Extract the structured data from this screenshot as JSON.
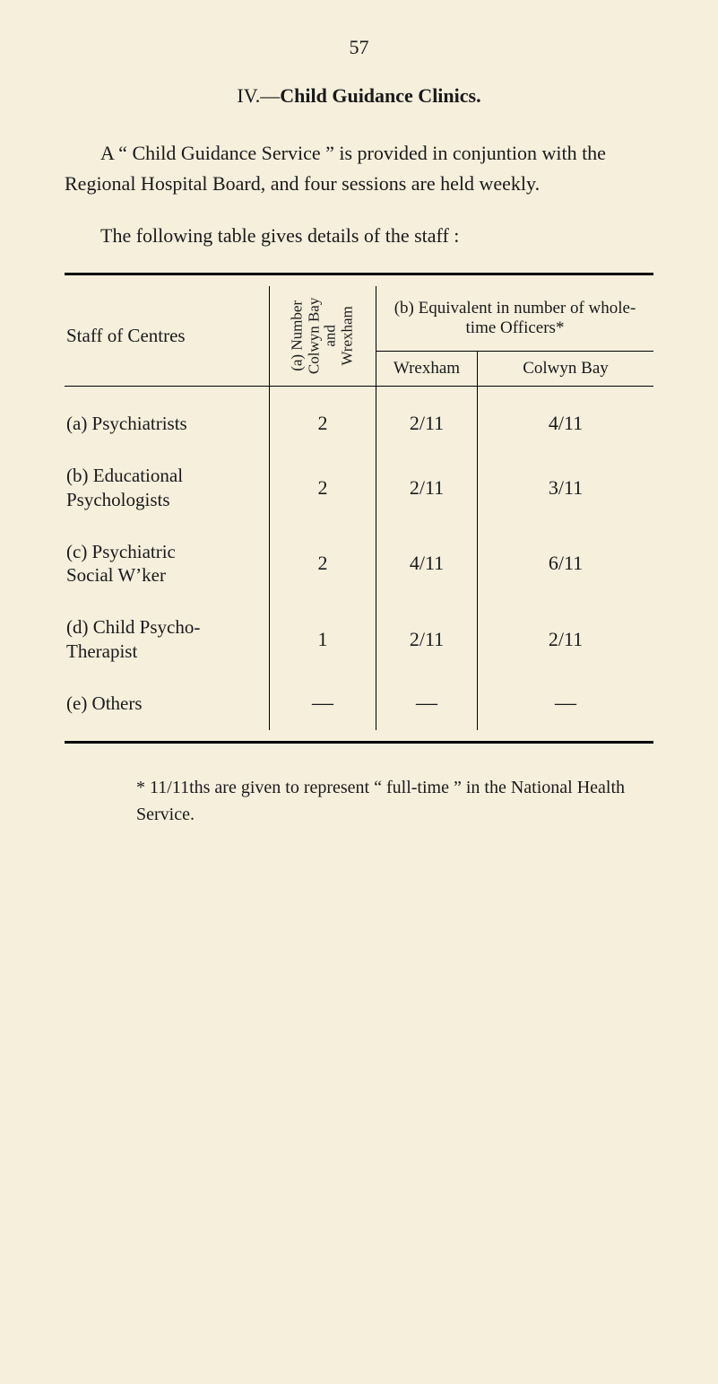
{
  "page_number": "57",
  "section": {
    "roman": "IV.—",
    "title": "Child Guidance Clinics."
  },
  "para1": "A “ Child Guidance Service ” is provided in conjuntion with the Regional Hospital Board, and four sessions are held weekly.",
  "para2": "The following table gives details of the staff :",
  "table": {
    "headers": {
      "staff": "Staff of Centres",
      "num_vert_line1": "(a) Number",
      "num_vert_line2": "Colwyn Bay",
      "num_vert_line3": "and",
      "num_vert_line4": "Wrexham",
      "equiv_top": "(b) Equivalent in number of whole-time Officers*",
      "wrexham": "Wrexham",
      "colwyn": "Colwyn Bay"
    },
    "rows": [
      {
        "label": "(a) Psychiatrists",
        "num": "2",
        "wrex": "2/11",
        "col": "4/11"
      },
      {
        "label": "(b) Educational\nPsychologists",
        "num": "2",
        "wrex": "2/11",
        "col": "3/11"
      },
      {
        "label": "(c) Psychiatric\nSocial W’ker",
        "num": "2",
        "wrex": "4/11",
        "col": "6/11"
      },
      {
        "label": "(d) Child Psycho-\nTherapist",
        "num": "1",
        "wrex": "2/11",
        "col": "2/11"
      },
      {
        "label": "(e) Others",
        "num": "—",
        "wrex": "—",
        "col": "—"
      }
    ]
  },
  "footnote": "* 11/11ths are given to represent “ full-time ” in the National Health Service.",
  "colors": {
    "background": "#f5efdc",
    "text": "#1a1a1a",
    "rule": "#000000"
  },
  "typography": {
    "body_pt": 22,
    "header_pt": 19,
    "family": "serif"
  }
}
